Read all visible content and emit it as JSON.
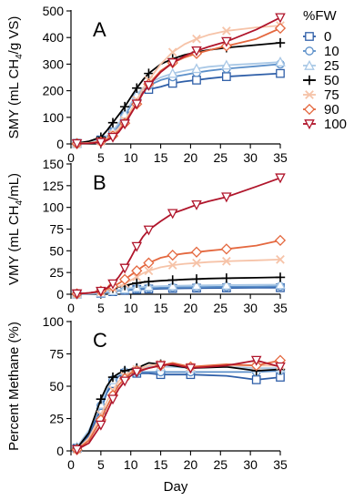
{
  "chart_data": [
    {
      "type": "line",
      "panel_label": "A",
      "ylabel": "SMY (mL CH4/g VS)",
      "ylabel_main": "SMY (mL CH",
      "ylabel_sub": "4",
      "ylabel_tail": "/g VS)",
      "xlabel": "",
      "xlim": [
        0,
        35
      ],
      "ylim": [
        0,
        500
      ],
      "yticks": [
        0,
        100,
        200,
        300,
        400,
        500
      ],
      "xticks": [
        0,
        5,
        10,
        15,
        20,
        25,
        30,
        35
      ],
      "grid": false,
      "legend": "right",
      "series": [
        {
          "name": "0",
          "x": [
            1,
            3,
            5,
            6,
            7,
            8,
            9,
            10,
            11,
            12,
            13,
            15,
            17,
            19,
            21,
            23,
            26,
            31,
            35
          ],
          "values": [
            2,
            6,
            15,
            28,
            45,
            72,
            105,
            145,
            175,
            195,
            205,
            215,
            228,
            235,
            240,
            246,
            253,
            260,
            265
          ]
        },
        {
          "name": "10",
          "x": [
            1,
            3,
            5,
            6,
            7,
            8,
            9,
            10,
            11,
            12,
            13,
            15,
            17,
            19,
            21,
            23,
            26,
            31,
            35
          ],
          "values": [
            2,
            5,
            14,
            26,
            42,
            70,
            105,
            145,
            180,
            205,
            220,
            240,
            252,
            260,
            268,
            275,
            283,
            292,
            300
          ]
        },
        {
          "name": "25",
          "x": [
            1,
            3,
            5,
            6,
            7,
            8,
            9,
            10,
            11,
            12,
            13,
            15,
            17,
            19,
            21,
            23,
            26,
            31,
            35
          ],
          "values": [
            2,
            6,
            16,
            30,
            48,
            78,
            112,
            152,
            185,
            210,
            228,
            250,
            265,
            275,
            283,
            290,
            296,
            302,
            308
          ]
        },
        {
          "name": "50",
          "x": [
            1,
            3,
            5,
            6,
            7,
            8,
            9,
            10,
            11,
            12,
            13,
            15,
            17,
            19,
            21,
            23,
            26,
            31,
            35
          ],
          "values": [
            3,
            10,
            25,
            50,
            80,
            110,
            140,
            175,
            210,
            240,
            265,
            300,
            320,
            335,
            345,
            353,
            362,
            372,
            380
          ]
        },
        {
          "name": "75",
          "x": [
            1,
            3,
            5,
            6,
            7,
            8,
            9,
            10,
            11,
            12,
            13,
            15,
            17,
            19,
            21,
            23,
            26,
            31,
            35
          ],
          "values": [
            2,
            4,
            10,
            20,
            38,
            60,
            88,
            125,
            165,
            205,
            240,
            300,
            345,
            375,
            395,
            410,
            425,
            438,
            445
          ]
        },
        {
          "name": "90",
          "x": [
            1,
            3,
            5,
            6,
            7,
            8,
            9,
            10,
            11,
            12,
            13,
            15,
            17,
            19,
            21,
            23,
            26,
            31,
            35
          ],
          "values": [
            1,
            3,
            8,
            16,
            30,
            50,
            78,
            115,
            150,
            190,
            225,
            275,
            305,
            325,
            340,
            352,
            368,
            395,
            435
          ]
        },
        {
          "name": "100",
          "x": [
            1,
            3,
            5,
            6,
            7,
            8,
            9,
            10,
            11,
            12,
            13,
            15,
            17,
            19,
            21,
            23,
            26,
            31,
            35
          ],
          "values": [
            1,
            2,
            6,
            13,
            25,
            45,
            75,
            112,
            150,
            190,
            220,
            270,
            305,
            330,
            350,
            365,
            385,
            430,
            475
          ]
        }
      ]
    },
    {
      "type": "line",
      "panel_label": "B",
      "ylabel": "VMY (mL CH4/mL)",
      "ylabel_main": "VMY (mL CH",
      "ylabel_sub": "4",
      "ylabel_tail": "/mL)",
      "xlabel": "",
      "xlim": [
        0,
        35
      ],
      "ylim": [
        0,
        150
      ],
      "yticks": [
        0,
        25,
        50,
        75,
        100,
        125,
        150
      ],
      "xticks": [
        0,
        5,
        10,
        15,
        20,
        25,
        30,
        35
      ],
      "grid": false,
      "series": [
        {
          "name": "0",
          "x": [
            1,
            3,
            5,
            6,
            7,
            8,
            9,
            10,
            11,
            12,
            13,
            15,
            17,
            19,
            21,
            23,
            26,
            31,
            35
          ],
          "values": [
            0.2,
            0.5,
            1,
            2,
            3,
            4,
            4.5,
            5,
            5.5,
            5.8,
            6,
            6.3,
            6.6,
            6.8,
            7,
            7.1,
            7.2,
            7.4,
            7.5
          ]
        },
        {
          "name": "10",
          "x": [
            1,
            3,
            5,
            6,
            7,
            8,
            9,
            10,
            11,
            12,
            13,
            15,
            17,
            19,
            21,
            23,
            26,
            31,
            35
          ],
          "values": [
            0.2,
            0.6,
            1.2,
            2.2,
            3.2,
            4.2,
            5,
            5.8,
            6.4,
            6.8,
            7.1,
            7.5,
            7.8,
            8,
            8.2,
            8.4,
            8.6,
            8.8,
            9
          ]
        },
        {
          "name": "25",
          "x": [
            1,
            3,
            5,
            6,
            7,
            8,
            9,
            10,
            11,
            12,
            13,
            15,
            17,
            19,
            21,
            23,
            26,
            31,
            35
          ],
          "values": [
            0.3,
            0.8,
            1.6,
            2.8,
            4,
            5,
            6,
            7,
            7.8,
            8.4,
            8.8,
            9.3,
            9.7,
            10,
            10.2,
            10.4,
            10.6,
            10.8,
            11
          ]
        },
        {
          "name": "50",
          "x": [
            1,
            3,
            5,
            6,
            7,
            8,
            9,
            10,
            11,
            12,
            13,
            15,
            17,
            19,
            21,
            23,
            26,
            31,
            35
          ],
          "values": [
            0.5,
            1.5,
            3,
            5,
            7,
            8.5,
            10,
            11.5,
            12.8,
            13.8,
            14.5,
            15.5,
            16.3,
            17,
            17.5,
            18,
            18.5,
            19,
            19.5
          ]
        },
        {
          "name": "75",
          "x": [
            1,
            3,
            5,
            6,
            7,
            8,
            9,
            10,
            11,
            12,
            13,
            15,
            17,
            19,
            21,
            23,
            26,
            31,
            35
          ],
          "values": [
            0.5,
            1.5,
            3,
            5,
            7,
            9,
            12,
            16,
            20,
            24,
            27,
            31,
            33.5,
            35,
            36,
            37,
            38,
            39,
            40
          ]
        },
        {
          "name": "90",
          "x": [
            1,
            3,
            5,
            6,
            7,
            8,
            9,
            10,
            11,
            12,
            13,
            15,
            17,
            19,
            21,
            23,
            26,
            31,
            35
          ],
          "values": [
            0.5,
            1.5,
            3.5,
            6,
            9,
            12.5,
            17,
            22,
            27,
            32,
            36,
            42,
            45,
            47,
            48.5,
            50,
            52,
            56,
            62
          ]
        },
        {
          "name": "100",
          "x": [
            1,
            3,
            5,
            6,
            7,
            8,
            9,
            10,
            11,
            12,
            13,
            15,
            17,
            19,
            21,
            23,
            26,
            31,
            35
          ],
          "values": [
            0.5,
            1.5,
            3.5,
            7,
            12,
            20,
            30,
            42,
            55,
            66,
            74,
            84,
            93,
            98,
            103,
            107,
            112,
            124,
            134
          ]
        }
      ]
    },
    {
      "type": "line",
      "panel_label": "C",
      "ylabel": "Percent Methane (%)",
      "xlabel": "Day",
      "xlim": [
        0,
        35
      ],
      "ylim": [
        0,
        100
      ],
      "yticks": [
        0,
        25,
        50,
        75,
        100
      ],
      "xticks": [
        0,
        5,
        10,
        15,
        20,
        25,
        30,
        35
      ],
      "grid": false,
      "series": [
        {
          "name": "0",
          "x": [
            1,
            3,
            5,
            6,
            7,
            8,
            9,
            10,
            11,
            13,
            15,
            17,
            20,
            26,
            31,
            35
          ],
          "values": [
            2,
            12,
            32,
            45,
            52,
            58,
            60,
            60,
            60,
            60,
            59,
            59,
            59,
            58,
            55,
            57
          ]
        },
        {
          "name": "10",
          "x": [
            1,
            3,
            5,
            6,
            7,
            8,
            9,
            10,
            11,
            13,
            15,
            17,
            20,
            26,
            31,
            35
          ],
          "values": [
            2,
            15,
            35,
            47,
            55,
            59,
            61,
            61,
            61,
            61,
            61,
            61,
            61,
            61,
            61,
            62
          ]
        },
        {
          "name": "25",
          "x": [
            1,
            3,
            5,
            6,
            7,
            8,
            9,
            10,
            11,
            13,
            15,
            17,
            20,
            26,
            31,
            35
          ],
          "values": [
            3,
            16,
            36,
            48,
            55,
            59,
            62,
            63,
            64,
            65,
            65,
            65,
            64,
            65,
            64,
            64
          ]
        },
        {
          "name": "50",
          "x": [
            1,
            3,
            5,
            6,
            7,
            8,
            9,
            10,
            11,
            13,
            15,
            17,
            20,
            26,
            31,
            35
          ],
          "values": [
            2,
            14,
            40,
            50,
            57,
            60,
            62,
            63,
            64,
            68,
            67,
            66,
            64,
            65,
            62,
            63
          ]
        },
        {
          "name": "75",
          "x": [
            1,
            3,
            5,
            6,
            7,
            8,
            9,
            10,
            11,
            13,
            15,
            17,
            20,
            26,
            31,
            35
          ],
          "values": [
            1,
            10,
            28,
            38,
            47,
            54,
            58,
            61,
            63,
            66,
            67,
            67,
            65,
            66,
            66,
            66
          ]
        },
        {
          "name": "90",
          "x": [
            1,
            3,
            5,
            6,
            7,
            8,
            9,
            10,
            11,
            13,
            15,
            17,
            20,
            26,
            31,
            35
          ],
          "values": [
            1,
            8,
            24,
            34,
            43,
            51,
            56,
            60,
            62,
            64,
            66,
            68,
            65,
            67,
            66,
            70
          ]
        },
        {
          "name": "100",
          "x": [
            1,
            3,
            5,
            6,
            7,
            8,
            9,
            10,
            11,
            13,
            15,
            17,
            20,
            26,
            31,
            35
          ],
          "values": [
            1,
            6,
            20,
            30,
            40,
            48,
            54,
            58,
            61,
            64,
            66,
            67,
            64,
            66,
            70,
            65
          ]
        }
      ]
    }
  ],
  "legend": {
    "title": "%FW",
    "entries": [
      {
        "label": "0",
        "color": "#2f5fa8",
        "marker": "square"
      },
      {
        "label": "10",
        "color": "#5b8fc9",
        "marker": "circle"
      },
      {
        "label": "25",
        "color": "#a9c8e6",
        "marker": "triangle-up"
      },
      {
        "label": "50",
        "color": "#000000",
        "marker": "plus"
      },
      {
        "label": "75",
        "color": "#f6c3a8",
        "marker": "x"
      },
      {
        "label": "90",
        "color": "#e4683f",
        "marker": "diamond"
      },
      {
        "label": "100",
        "color": "#b0152b",
        "marker": "triangle-down"
      }
    ]
  }
}
